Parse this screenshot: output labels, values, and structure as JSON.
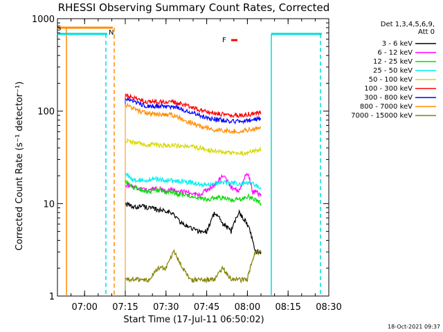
{
  "chart_data": {
    "type": "line",
    "title": "RHESSI Observing Summary Count Rates, Corrected",
    "xlabel": "Start Time (17-Jul-11 06:50:02)",
    "ylabel": "Corrected Count Rate (s⁻¹ detector⁻¹)",
    "y_scale": "log",
    "ylim": [
      1,
      1000
    ],
    "x_start_minutes": 0,
    "x_end_minutes": 100,
    "x_ticks": [
      {
        "minutes": 10,
        "label": "07:00"
      },
      {
        "minutes": 25,
        "label": "07:15"
      },
      {
        "minutes": 40,
        "label": "07:30"
      },
      {
        "minutes": 55,
        "label": "07:45"
      },
      {
        "minutes": 70,
        "label": "08:00"
      },
      {
        "minutes": 85,
        "label": "08:15"
      },
      {
        "minutes": 100,
        "label": "08:30"
      }
    ],
    "y_ticks": [
      {
        "value": 1,
        "label": "1"
      },
      {
        "value": 10,
        "label": "10"
      },
      {
        "value": 100,
        "label": "100"
      },
      {
        "value": 1000,
        "label": "1000"
      }
    ],
    "legend_header": [
      "Det 1,3,4,5,6,9,",
      "Att 0"
    ],
    "legend_position": "top-right",
    "series": [
      {
        "name": "3 - 6 keV",
        "color": "#000000",
        "x": [
          25,
          28,
          31,
          34,
          37,
          40,
          43,
          46,
          49,
          52,
          55,
          58,
          61,
          64,
          67,
          70,
          73,
          75
        ],
        "values": [
          10,
          9,
          9.5,
          9,
          8.5,
          8.5,
          7.5,
          6,
          5.5,
          5,
          5,
          8,
          6,
          5,
          8,
          6,
          3,
          3
        ]
      },
      {
        "name": "6 - 12 keV",
        "color": "#ff00ff",
        "x": [
          25,
          28,
          31,
          34,
          37,
          40,
          43,
          46,
          49,
          52,
          55,
          58,
          61,
          64,
          67,
          70,
          72,
          73,
          75
        ],
        "values": [
          16,
          15,
          14.5,
          14,
          14.5,
          14,
          14,
          13.5,
          13,
          12.5,
          14,
          16,
          20,
          15,
          14,
          22,
          13,
          14,
          12
        ]
      },
      {
        "name": "12 - 25 keV",
        "color": "#00dd00",
        "x": [
          25,
          28,
          31,
          34,
          37,
          40,
          43,
          46,
          49,
          52,
          55,
          58,
          61,
          64,
          67,
          70,
          73,
          75
        ],
        "values": [
          17,
          15,
          14,
          13.5,
          14,
          13.5,
          13,
          12.5,
          12,
          11.5,
          11,
          11.5,
          11.5,
          11,
          11,
          12,
          11,
          10
        ]
      },
      {
        "name": "25 - 50 keV",
        "color": "#00eeee",
        "x": [
          25,
          28,
          31,
          34,
          37,
          40,
          43,
          46,
          49,
          52,
          55,
          58,
          61,
          64,
          67,
          70,
          73,
          75
        ],
        "values": [
          21,
          18,
          18,
          18,
          18.5,
          18,
          17.5,
          17.5,
          17,
          16.5,
          16,
          16.5,
          17,
          17,
          16.5,
          17,
          16,
          15
        ]
      },
      {
        "name": "50 - 100 keV",
        "color": "#d7d700",
        "x": [
          25,
          28,
          31,
          34,
          37,
          40,
          43,
          46,
          49,
          52,
          55,
          58,
          61,
          64,
          67,
          70,
          73,
          75
        ],
        "values": [
          48,
          46,
          44,
          43,
          43,
          43,
          43,
          42,
          41,
          40,
          38,
          37,
          36,
          35,
          35,
          36,
          37,
          38
        ]
      },
      {
        "name": "100 - 300 keV",
        "color": "#ff0000",
        "x": [
          25,
          28,
          31,
          34,
          37,
          40,
          43,
          46,
          49,
          52,
          55,
          58,
          61,
          64,
          67,
          70,
          73,
          75
        ],
        "values": [
          147,
          138,
          130,
          125,
          125,
          128,
          124,
          120,
          112,
          105,
          98,
          95,
          92,
          90,
          90,
          92,
          95,
          96
        ]
      },
      {
        "name": "300 - 800 keV",
        "color": "#0000ff",
        "x": [
          25,
          28,
          31,
          34,
          37,
          40,
          43,
          46,
          49,
          52,
          55,
          58,
          61,
          64,
          67,
          70,
          73,
          75
        ],
        "values": [
          135,
          125,
          118,
          113,
          113,
          114,
          112,
          105,
          98,
          90,
          85,
          82,
          80,
          78,
          78,
          79,
          82,
          83
        ]
      },
      {
        "name": "800 - 7000 keV",
        "color": "#ff8c00",
        "x": [
          25,
          28,
          31,
          34,
          37,
          40,
          43,
          46,
          49,
          52,
          55,
          58,
          61,
          64,
          67,
          70,
          73,
          75
        ],
        "values": [
          118,
          108,
          98,
          93,
          92,
          92,
          90,
          82,
          75,
          70,
          66,
          63,
          62,
          61,
          61,
          62,
          65,
          68
        ]
      },
      {
        "name": "7000 - 15000 keV",
        "color": "#808000",
        "x": [
          25,
          28,
          31,
          34,
          37,
          40,
          43,
          46,
          49,
          52,
          55,
          58,
          61,
          64,
          67,
          70,
          72,
          73,
          75
        ],
        "values": [
          1.5,
          1.5,
          1.5,
          1.5,
          2,
          2,
          3,
          2,
          1.5,
          1.5,
          1.5,
          1.5,
          2,
          1.5,
          1.5,
          1.5,
          2.5,
          3,
          3
        ]
      }
    ],
    "annotations": [
      {
        "text": "S",
        "color": "#ff8c00"
      },
      {
        "text": "N",
        "color": "#00dddd"
      },
      {
        "text": "F",
        "color": "#ff0000"
      }
    ]
  },
  "footer": {
    "timestamp": "18-Oct-2021 09:37"
  }
}
